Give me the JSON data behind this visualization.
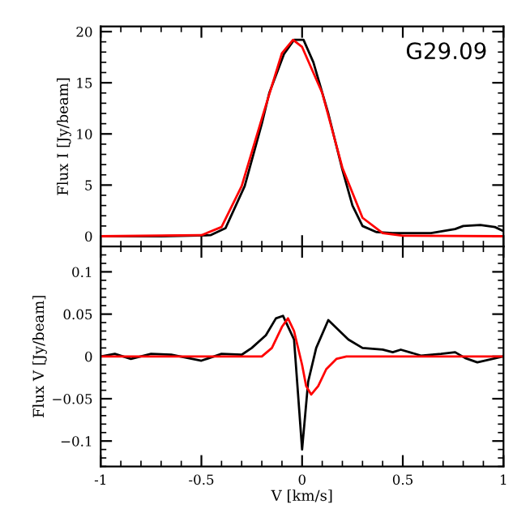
{
  "chart_data": [
    {
      "type": "line",
      "ylabel": "Flux I [Jy/beam]",
      "annotations": [
        "G29.09"
      ],
      "xlim": [
        -1,
        1
      ],
      "ylim": [
        -1,
        20.5
      ],
      "xticks": [
        {
          "value": -1,
          "label": null
        },
        {
          "value": -0.5,
          "label": null
        },
        {
          "value": 0,
          "label": null
        },
        {
          "value": 0.5,
          "label": null
        },
        {
          "value": 1,
          "label": null
        }
      ],
      "yticks": [
        0,
        5,
        10,
        15,
        20
      ],
      "tick_labels": "y",
      "legend": false,
      "series": [
        {
          "color": "#000000",
          "x": [
            -1,
            -0.7,
            -0.455,
            -0.38,
            -0.285,
            -0.2,
            -0.163,
            -0.09,
            -0.04,
            0.007,
            0.056,
            0.13,
            0.2,
            0.25,
            0.3,
            0.37,
            0.45,
            0.64,
            0.76,
            0.8,
            0.885,
            0.957,
            1.0
          ],
          "values": [
            0,
            0,
            0.1,
            0.8,
            4.9,
            11,
            14,
            17.8,
            19.2,
            19.2,
            17,
            12,
            6.5,
            3,
            1,
            0.4,
            0.3,
            0.3,
            0.7,
            1.0,
            1.1,
            0.9,
            0.5
          ]
        },
        {
          "color": "#ff0000",
          "x": [
            -1,
            -0.5,
            -0.4,
            -0.3,
            -0.2,
            -0.1,
            -0.045,
            0,
            0.1,
            0.2,
            0.3,
            0.4,
            0.5,
            1
          ],
          "values": [
            0,
            0.1,
            0.9,
            4.9,
            11.5,
            17.9,
            19.2,
            18.5,
            14,
            6.7,
            1.8,
            0.3,
            0.05,
            0
          ]
        }
      ]
    },
    {
      "type": "line",
      "xlabel": "V [km/s]",
      "ylabel": "Flux V [Jy/beam]",
      "xlim": [
        -1,
        1
      ],
      "ylim": [
        -0.13,
        0.13
      ],
      "xticks": [
        -1,
        -0.5,
        0,
        0.5,
        1
      ],
      "yticks": [
        {
          "value": -0.1,
          "label": "−0.1"
        },
        {
          "value": -0.05,
          "label": "−0.05"
        },
        0,
        0.05,
        0.1
      ],
      "legend": false,
      "series": [
        {
          "color": "#000000",
          "x": [
            -1,
            -0.93,
            -0.85,
            -0.75,
            -0.65,
            -0.5,
            -0.4,
            -0.3,
            -0.25,
            -0.18,
            -0.13,
            -0.095,
            -0.04,
            0,
            0.03,
            0.07,
            0.13,
            0.23,
            0.3,
            0.4,
            0.45,
            0.49,
            0.59,
            0.69,
            0.76,
            0.81,
            0.87,
            1
          ],
          "values": [
            0,
            0.003,
            -0.003,
            0.003,
            0.002,
            -0.005,
            0.003,
            0.002,
            0.01,
            0.025,
            0.045,
            0.048,
            0.02,
            -0.11,
            -0.03,
            0.01,
            0.043,
            0.02,
            0.01,
            0.008,
            0.005,
            0.008,
            0.001,
            0.003,
            0.005,
            -0.002,
            -0.007,
            0
          ]
        },
        {
          "color": "#ff0000",
          "x": [
            -1,
            -0.2,
            -0.15,
            -0.1,
            -0.07,
            -0.04,
            0,
            0.02,
            0.045,
            0.08,
            0.12,
            0.17,
            0.22,
            1
          ],
          "values": [
            0,
            0,
            0.01,
            0.035,
            0.045,
            0.03,
            -0.01,
            -0.035,
            -0.045,
            -0.035,
            -0.015,
            -0.003,
            0,
            0
          ]
        }
      ]
    }
  ]
}
